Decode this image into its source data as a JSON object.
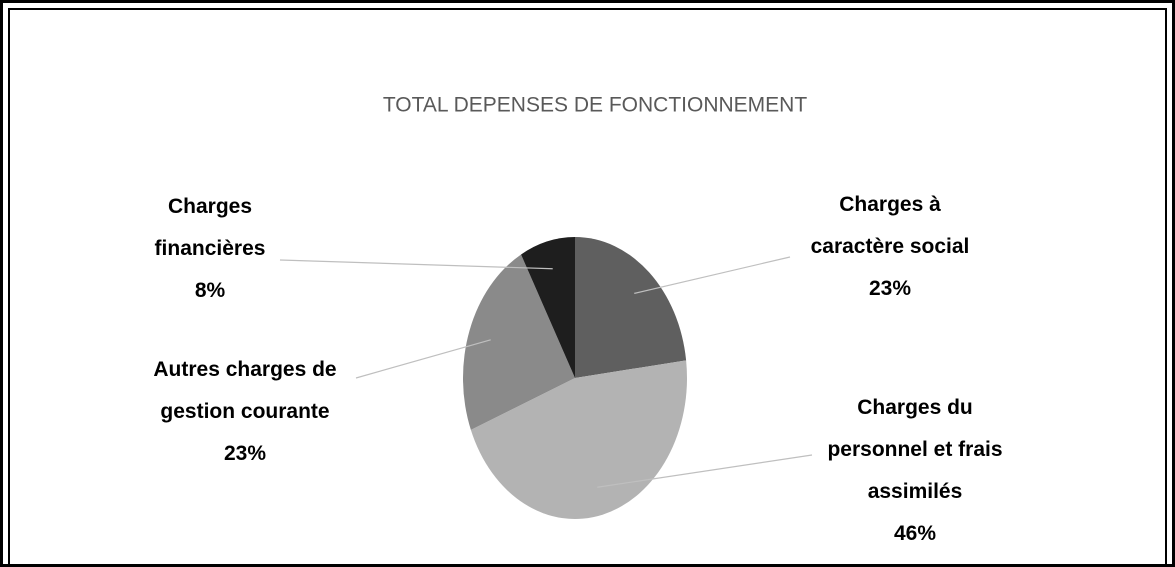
{
  "chart_data": {
    "type": "pie",
    "title": "TOTAL DEPENSES DE FONCTIONNEMENT",
    "categories": [
      "Charges à caractère social",
      "Charges du personnel et frais assimilés",
      "Autres charges de gestion courante",
      "Charges financières"
    ],
    "values": [
      23,
      46,
      23,
      8
    ],
    "value_labels": [
      "23%",
      "46%",
      "23%",
      "8%"
    ],
    "colors": [
      "#5f5f5f",
      "#b3b3b3",
      "#8a8a8a",
      "#1e1e1e"
    ]
  }
}
